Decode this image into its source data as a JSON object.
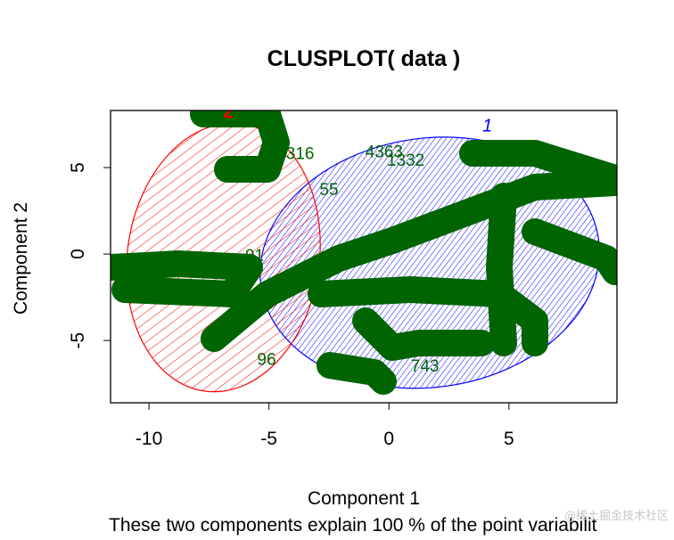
{
  "chart_data": {
    "type": "scatter",
    "title": "CLUSPLOT( data )",
    "xlabel": "Component 1",
    "ylabel": "Component 2",
    "subtitle": "These two components explain 100 % of the point variabilit",
    "xlim": [
      -11.6,
      9.5
    ],
    "ylim": [
      -8.6,
      8.3
    ],
    "xticks": [
      -10,
      -5,
      0,
      5
    ],
    "yticks": [
      -5,
      0,
      5
    ],
    "grid": false,
    "clusters": [
      {
        "label": "1",
        "color": "#0000ff",
        "center": [
          1.7,
          -0.5
        ],
        "semi_axes": [
          7.1,
          7.2
        ],
        "shading": "hatched"
      },
      {
        "label": "2",
        "color": "#ff0000",
        "center": [
          -6.9,
          -0.2
        ],
        "semi_axes": [
          4.0,
          7.8
        ],
        "shading": "hatched"
      }
    ],
    "point_color": "#006400",
    "point_labels": [
      {
        "text": "316",
        "x": -3.7,
        "y": 5.5
      },
      {
        "text": "4363",
        "x": -0.2,
        "y": 5.6
      },
      {
        "text": "1332",
        "x": 0.7,
        "y": 5.1
      },
      {
        "text": "55",
        "x": -2.5,
        "y": 3.4
      },
      {
        "text": "91",
        "x": -5.6,
        "y": -0.4
      },
      {
        "text": "96",
        "x": -5.1,
        "y": -6.4
      },
      {
        "text": "743",
        "x": 1.5,
        "y": -6.8
      }
    ]
  },
  "watermark": "@稀土掘金技术社区"
}
